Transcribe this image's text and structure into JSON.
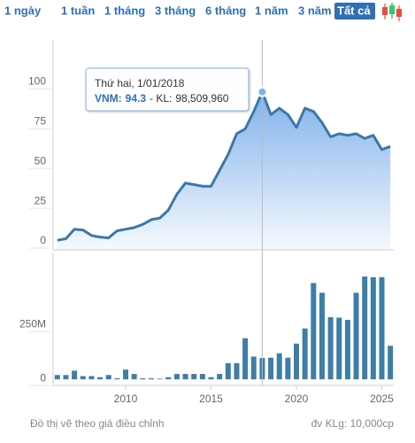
{
  "buttons": [
    "1 ngày",
    "1 tuần",
    "1 tháng",
    "3 tháng",
    "6 tháng",
    "1 năm",
    "3 năm",
    "Tất cả"
  ],
  "active_button": 7,
  "chart_data": [
    {
      "type": "area",
      "x": [
        2006.0,
        2006.5,
        2007.0,
        2007.5,
        2008.0,
        2008.5,
        2009.0,
        2009.5,
        2010.0,
        2010.5,
        2011.0,
        2011.5,
        2012.0,
        2012.5,
        2013.0,
        2013.5,
        2014.0,
        2014.5,
        2015.0,
        2015.5,
        2016.0,
        2016.5,
        2017.0,
        2017.5,
        2018.0,
        2018.5,
        2019.0,
        2019.5,
        2020.0,
        2020.5,
        2021.0,
        2021.5,
        2022.0,
        2022.5,
        2023.0,
        2023.5,
        2024.0,
        2024.5,
        2025.0,
        2025.5
      ],
      "series": [
        {
          "name": "VNM",
          "color": "#3a78a8",
          "values": [
            1,
            2,
            8,
            7.5,
            4,
            3,
            2.5,
            7,
            8,
            9,
            11,
            14,
            15,
            20,
            30,
            37,
            36,
            35,
            35,
            45,
            55,
            68,
            71,
            82,
            94.3,
            80,
            84,
            80,
            72,
            84,
            82,
            75,
            66,
            68,
            67,
            68,
            65,
            67,
            58,
            60
          ]
        }
      ],
      "xlim": [
        2005.75,
        2025.7
      ],
      "ylim": [
        -5,
        127
      ],
      "yticks": [
        0,
        25,
        50,
        75,
        100
      ]
    },
    {
      "type": "bar",
      "x": [
        2006.0,
        2006.5,
        2007.0,
        2007.5,
        2008.0,
        2008.5,
        2009.0,
        2009.5,
        2010.0,
        2010.5,
        2011.0,
        2011.5,
        2012.0,
        2012.5,
        2013.0,
        2013.5,
        2014.0,
        2014.5,
        2015.0,
        2015.5,
        2016.0,
        2016.5,
        2017.0,
        2017.5,
        2018.0,
        2018.5,
        2019.0,
        2019.5,
        2020.0,
        2020.5,
        2021.0,
        2021.5,
        2022.0,
        2022.5,
        2023.0,
        2023.5,
        2024.0,
        2024.5,
        2025.0,
        2025.5
      ],
      "series": [
        {
          "name": "KL",
          "color": "#3d7ea6",
          "values": [
            20000000,
            20000000,
            40000000,
            15000000,
            15000000,
            10000000,
            20000000,
            5000000,
            45000000,
            25000000,
            5000000,
            5000000,
            3000000,
            10000000,
            25000000,
            25000000,
            25000000,
            25000000,
            10000000,
            25000000,
            75000000,
            75000000,
            190000000,
            105000000,
            98509960,
            100000000,
            120000000,
            100000000,
            165000000,
            235000000,
            445000000,
            400000000,
            287000000,
            285000000,
            275000000,
            400000000,
            475000000,
            472000000,
            472000000,
            155000000
          ]
        }
      ],
      "xlim": [
        2005.75,
        2025.7
      ],
      "xticks": [
        2010,
        2015,
        2020,
        2025
      ],
      "ylim": [
        -28000000,
        586000000
      ],
      "yticks": [
        0,
        {
          "value": 250000000,
          "label": "250M"
        }
      ]
    }
  ],
  "tooltip": {
    "date": "Thứ hai, 1/01/2018",
    "name": "VNM:",
    "volume_label": "- KL:",
    "volume": "98,509,960"
  },
  "footer": {
    "left": "Đồ thị vẽ theo giá điều chỉnh",
    "right": "đv KLg: 10,000cp"
  }
}
